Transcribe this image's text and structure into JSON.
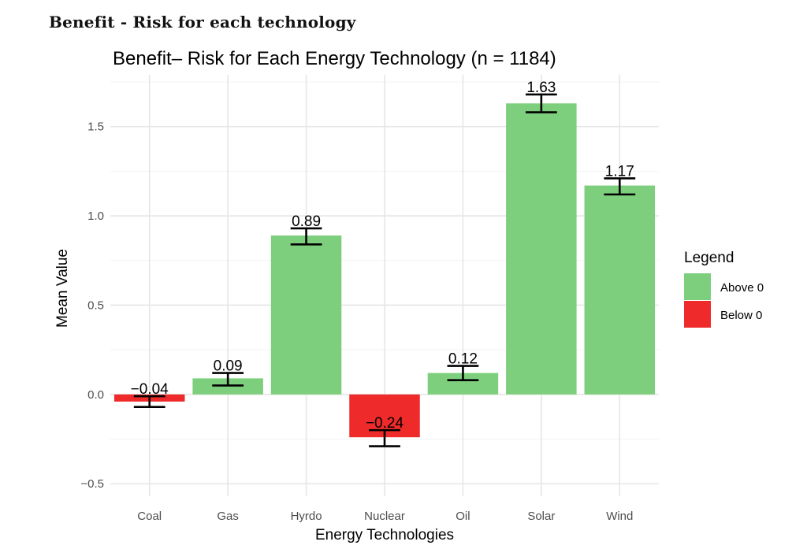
{
  "caption": "Benefit - Risk for each technology",
  "chart_data": {
    "type": "bar",
    "title": "Benefit– Risk for Each Energy Technology (n = 1184)",
    "xlabel": "Energy Technologies",
    "ylabel": "Mean Value",
    "categories": [
      "Coal",
      "Gas",
      "Hyrdo",
      "Nuclear",
      "Oil",
      "Solar",
      "Wind"
    ],
    "values": [
      -0.04,
      0.09,
      0.89,
      -0.24,
      0.12,
      1.63,
      1.17
    ],
    "value_labels": [
      "−0.04",
      "0.09",
      "0.89",
      "−0.24",
      "0.12",
      "1.63",
      "1.17"
    ],
    "error_low": [
      -0.07,
      0.05,
      0.84,
      -0.29,
      0.08,
      1.58,
      1.12
    ],
    "error_high": [
      -0.01,
      0.12,
      0.93,
      -0.2,
      0.16,
      1.68,
      1.21
    ],
    "groups": [
      "Below 0",
      "Above 0",
      "Above 0",
      "Below 0",
      "Above 0",
      "Above 0",
      "Above 0"
    ],
    "ylim": [
      -0.57,
      1.79
    ],
    "yticks": [
      -0.5,
      0.0,
      0.5,
      1.0,
      1.5
    ],
    "ytick_labels": [
      "−0.5",
      "0.0",
      "0.5",
      "1.0",
      "1.5"
    ],
    "grid": true,
    "legend": {
      "title": "Legend",
      "placement": "right",
      "entries": [
        {
          "label": "Above 0",
          "color": "#7dcf7d"
        },
        {
          "label": "Below 0",
          "color": "#ee2a2a"
        }
      ]
    },
    "colors": {
      "Above 0": "#7dcf7d",
      "Below 0": "#ee2a2a"
    }
  }
}
